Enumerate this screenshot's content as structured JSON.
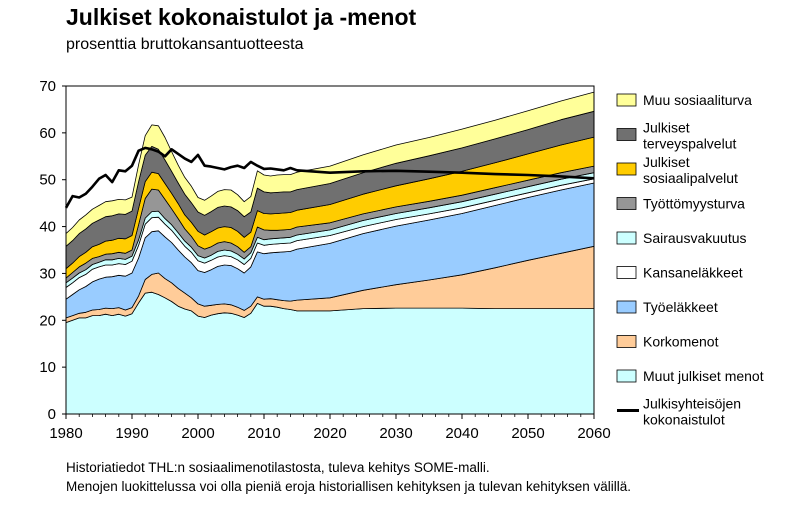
{
  "title": "Julkiset kokonaistulot ja -menot",
  "subtitle": "prosenttia bruttokansantuotteesta",
  "notes": [
    "Historiatiedot THL:n sosiaalimenotilastosta, tuleva kehitys SOME-malli.",
    "Menojen luokittelussa voi olla pieniä eroja historiallisen kehityksen ja tulevan kehityksen välillä."
  ],
  "chart_data": {
    "type": "area",
    "stacked": true,
    "grid": false,
    "legend_position": "right",
    "title": "Julkiset kokonaistulot ja -menot",
    "subtitle": "prosenttia bruttokansantuotteesta",
    "xlim": [
      1980,
      2060
    ],
    "ylim": [
      0,
      70
    ],
    "x_ticks": [
      1980,
      1990,
      2000,
      2010,
      2020,
      2030,
      2040,
      2050,
      2060
    ],
    "y_ticks": [
      0,
      10,
      20,
      30,
      40,
      50,
      60,
      70
    ],
    "x": [
      1980,
      1981,
      1982,
      1983,
      1984,
      1985,
      1986,
      1987,
      1988,
      1989,
      1990,
      1991,
      1992,
      1993,
      1994,
      1995,
      1996,
      1997,
      1998,
      1999,
      2000,
      2001,
      2002,
      2003,
      2004,
      2005,
      2006,
      2007,
      2008,
      2009,
      2010,
      2011,
      2012,
      2013,
      2014,
      2015,
      2020,
      2025,
      2030,
      2035,
      2040,
      2045,
      2050,
      2055,
      2060
    ],
    "series": [
      {
        "name": "Muut julkiset menot",
        "color": "#CCFFFF",
        "values": [
          19.5,
          20.0,
          20.5,
          20.5,
          21.0,
          21.0,
          21.3,
          21.0,
          21.3,
          20.9,
          21.4,
          23.7,
          25.8,
          26.0,
          25.5,
          24.8,
          24.0,
          23.0,
          22.4,
          22.0,
          20.9,
          20.6,
          21.1,
          21.4,
          21.6,
          21.5,
          21.1,
          20.6,
          21.5,
          23.6,
          23.0,
          23.0,
          22.8,
          22.5,
          22.3,
          22.0,
          22.0,
          22.5,
          22.6,
          22.6,
          22.6,
          22.5,
          22.5,
          22.5,
          22.5
        ]
      },
      {
        "name": "Korkomenot",
        "color": "#FFCC99",
        "values": [
          1.0,
          1.0,
          1.0,
          1.2,
          1.2,
          1.3,
          1.3,
          1.5,
          1.4,
          1.3,
          1.3,
          1.5,
          2.9,
          3.8,
          4.6,
          4.1,
          4.0,
          3.8,
          3.4,
          2.8,
          2.6,
          2.4,
          2.1,
          2.0,
          1.9,
          1.8,
          1.7,
          1.5,
          1.5,
          1.4,
          1.5,
          1.6,
          1.6,
          1.7,
          1.8,
          2.3,
          2.8,
          3.9,
          5.0,
          6.0,
          7.1,
          8.7,
          10.3,
          11.8,
          13.3
        ]
      },
      {
        "name": "Työeläkkeet",
        "color": "#99CCFF",
        "values": [
          4.0,
          4.5,
          5.0,
          5.5,
          6.0,
          6.5,
          6.6,
          6.8,
          6.9,
          7.2,
          7.4,
          8.1,
          8.9,
          9.1,
          9.0,
          8.9,
          8.6,
          8.2,
          7.7,
          7.5,
          7.1,
          7.2,
          7.6,
          8.1,
          8.3,
          8.4,
          8.2,
          8.0,
          8.4,
          9.6,
          9.7,
          9.8,
          10.1,
          10.4,
          10.6,
          10.9,
          11.6,
          12.1,
          12.5,
          12.8,
          13.1,
          13.3,
          13.4,
          13.5,
          13.5
        ]
      },
      {
        "name": "Kansaneläkkeet",
        "color": "#FFFFFF",
        "values": [
          2.5,
          2.5,
          2.6,
          2.6,
          2.7,
          2.6,
          2.6,
          2.5,
          2.5,
          2.5,
          2.5,
          2.7,
          2.9,
          3.0,
          2.9,
          2.7,
          2.6,
          2.5,
          2.3,
          2.2,
          2.1,
          2.0,
          2.0,
          2.0,
          2.0,
          1.9,
          1.9,
          1.8,
          1.8,
          1.9,
          1.8,
          1.8,
          1.8,
          1.8,
          1.8,
          1.8,
          1.7,
          1.5,
          1.4,
          1.3,
          1.2,
          1.1,
          1.0,
          1.0,
          0.9
        ]
      },
      {
        "name": "Sairausvakuutus",
        "color": "#CCFFFF",
        "values": [
          1.0,
          1.0,
          1.0,
          1.0,
          1.0,
          1.0,
          1.1,
          1.1,
          1.1,
          1.1,
          1.1,
          1.2,
          1.3,
          1.3,
          1.3,
          1.2,
          1.2,
          1.2,
          1.1,
          1.1,
          1.1,
          1.1,
          1.1,
          1.2,
          1.2,
          1.2,
          1.2,
          1.2,
          1.2,
          1.2,
          1.2,
          1.2,
          1.2,
          1.2,
          1.2,
          1.2,
          1.2,
          1.3,
          1.3,
          1.3,
          1.3,
          1.3,
          1.3,
          1.3,
          1.3
        ]
      },
      {
        "name": "Työttömyysturva",
        "color": "#969696",
        "values": [
          1.0,
          1.2,
          1.3,
          1.4,
          1.3,
          1.2,
          1.2,
          1.3,
          1.3,
          1.3,
          1.3,
          3.2,
          4.2,
          4.8,
          4.5,
          4.1,
          3.4,
          3.0,
          2.6,
          2.3,
          2.1,
          1.9,
          1.8,
          1.8,
          1.8,
          1.7,
          1.6,
          1.4,
          1.3,
          2.2,
          2.1,
          1.8,
          1.7,
          1.7,
          1.7,
          1.7,
          1.5,
          1.4,
          1.4,
          1.4,
          1.4,
          1.4,
          1.4,
          1.4,
          1.4
        ]
      },
      {
        "name": "Julkiset sosiaalipalvelut",
        "color": "#FFCC00",
        "values": [
          2.0,
          2.0,
          2.2,
          2.3,
          2.5,
          2.6,
          2.8,
          2.9,
          3.0,
          3.1,
          3.1,
          3.5,
          3.6,
          3.6,
          3.5,
          3.4,
          3.3,
          3.2,
          3.0,
          3.0,
          3.1,
          3.0,
          3.2,
          3.2,
          3.2,
          3.3,
          3.3,
          3.2,
          3.1,
          3.5,
          3.5,
          3.5,
          3.6,
          3.6,
          3.6,
          3.6,
          3.9,
          4.2,
          4.5,
          4.8,
          5.1,
          5.3,
          5.6,
          5.9,
          6.2
        ]
      },
      {
        "name": "Julkiset terveyspalvelut",
        "color": "#707070",
        "values": [
          4.8,
          4.8,
          4.9,
          5.0,
          5.0,
          5.2,
          5.2,
          5.2,
          5.2,
          5.2,
          5.2,
          5.7,
          5.6,
          5.5,
          5.2,
          5.0,
          4.7,
          4.4,
          4.4,
          4.2,
          4.1,
          4.2,
          4.3,
          4.4,
          4.4,
          4.4,
          4.4,
          4.4,
          4.3,
          4.8,
          4.6,
          4.5,
          4.5,
          4.5,
          4.4,
          4.4,
          4.5,
          4.6,
          4.8,
          4.9,
          5.0,
          5.1,
          5.2,
          5.4,
          5.5
        ]
      },
      {
        "name": "Muu sosiaaliturva",
        "color": "#FFFF99",
        "values": [
          2.7,
          2.8,
          2.9,
          3.0,
          3.0,
          3.1,
          3.2,
          3.2,
          3.1,
          3.1,
          3.0,
          3.6,
          4.2,
          4.6,
          5.0,
          4.8,
          4.2,
          3.8,
          3.6,
          3.5,
          3.1,
          3.2,
          3.3,
          3.4,
          3.5,
          3.6,
          3.4,
          3.2,
          3.3,
          3.7,
          3.6,
          3.6,
          3.7,
          3.7,
          3.7,
          3.7,
          3.7,
          3.8,
          3.9,
          3.9,
          4.0,
          4.0,
          4.0,
          4.0,
          4.1
        ]
      }
    ],
    "line_series": {
      "name": "Julkisyhteisöjen kokonaistulot",
      "color": "#000000",
      "x": [
        1980,
        1981,
        1982,
        1983,
        1984,
        1985,
        1986,
        1987,
        1988,
        1989,
        1990,
        1991,
        1992,
        1993,
        1994,
        1995,
        1996,
        1997,
        1998,
        1999,
        2000,
        2001,
        2002,
        2003,
        2004,
        2005,
        2006,
        2007,
        2008,
        2009,
        2010,
        2011,
        2012,
        2013,
        2014,
        2015,
        2020,
        2025,
        2030,
        2035,
        2040,
        2045,
        2050,
        2055,
        2060
      ],
      "values": [
        44.0,
        46.5,
        46.2,
        47.0,
        48.5,
        50.2,
        51.0,
        49.5,
        52.0,
        51.8,
        53.0,
        56.2,
        56.8,
        56.5,
        56.0,
        55.0,
        56.5,
        55.5,
        54.5,
        53.8,
        55.3,
        53.0,
        52.8,
        52.5,
        52.2,
        52.7,
        53.0,
        52.5,
        53.8,
        53.0,
        52.3,
        52.4,
        52.2,
        52.0,
        52.5,
        52.0,
        51.5,
        51.8,
        51.9,
        51.7,
        51.5,
        51.2,
        51.0,
        50.7,
        50.3
      ]
    }
  }
}
